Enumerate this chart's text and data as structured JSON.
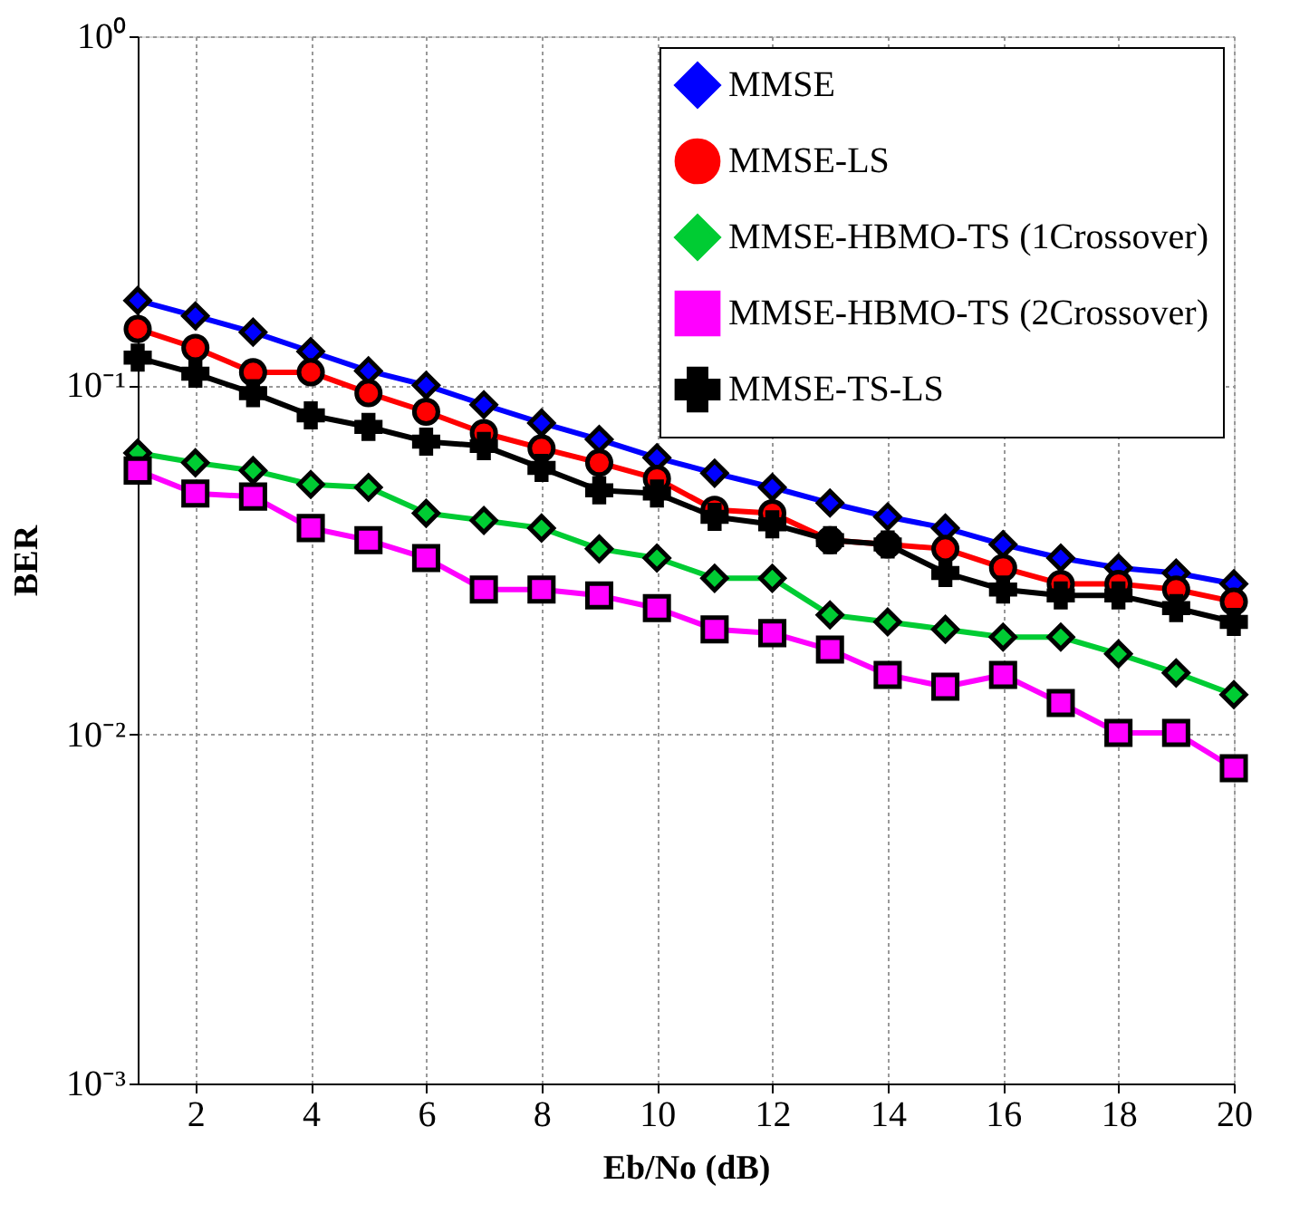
{
  "chart_data": {
    "type": "line",
    "xlabel": "Eb/No (dB)",
    "ylabel": "BER",
    "x": [
      1,
      2,
      3,
      4,
      5,
      6,
      7,
      8,
      9,
      10,
      11,
      12,
      13,
      14,
      15,
      16,
      17,
      18,
      19,
      20
    ],
    "xlim": [
      1,
      20
    ],
    "xticks": [
      2,
      4,
      6,
      8,
      10,
      12,
      14,
      16,
      18,
      20
    ],
    "ylim": [
      0.001,
      1
    ],
    "yticks": [
      {
        "value": 0.001,
        "label": "10⁻³"
      },
      {
        "value": 0.01,
        "label": "10⁻²"
      },
      {
        "value": 0.1,
        "label": "10⁻¹"
      },
      {
        "value": 1,
        "label": "10⁰"
      }
    ],
    "log": "y",
    "grid": true,
    "legend": "top right",
    "series": [
      {
        "name": "MMSE",
        "color": "#0000ff",
        "marker": "diamond",
        "values": [
          0.175,
          0.158,
          0.142,
          0.125,
          0.11,
          0.1,
          0.088,
          0.078,
          0.07,
          0.062,
          0.056,
          0.051,
          0.046,
          0.042,
          0.039,
          0.035,
          0.032,
          0.03,
          0.029,
          0.027
        ]
      },
      {
        "name": "MMSE-LS",
        "color": "#ff0000",
        "marker": "circle",
        "values": [
          0.145,
          0.128,
          0.109,
          0.109,
          0.095,
          0.084,
          0.073,
          0.066,
          0.06,
          0.054,
          0.044,
          0.043,
          0.036,
          0.035,
          0.034,
          0.03,
          0.027,
          0.027,
          0.026,
          0.024
        ]
      },
      {
        "name": "MMSE-HBMO-TS (1Crossover)",
        "color": "#00cc33",
        "marker": "diamond",
        "values": [
          0.064,
          0.06,
          0.057,
          0.052,
          0.051,
          0.043,
          0.041,
          0.039,
          0.034,
          0.032,
          0.028,
          0.028,
          0.022,
          0.021,
          0.02,
          0.019,
          0.019,
          0.017,
          0.015,
          0.013
        ]
      },
      {
        "name": "MMSE-HBMO-TS (2Crossover)",
        "color": "#ff00ff",
        "marker": "square",
        "values": [
          0.057,
          0.049,
          0.048,
          0.039,
          0.036,
          0.032,
          0.026,
          0.026,
          0.025,
          0.023,
          0.02,
          0.0195,
          0.0175,
          0.0148,
          0.0137,
          0.0148,
          0.0123,
          0.0101,
          0.0101,
          0.008
        ]
      },
      {
        "name": "MMSE-TS-LS",
        "color": "#000000",
        "marker": "cross",
        "values": [
          0.12,
          0.108,
          0.095,
          0.082,
          0.076,
          0.069,
          0.067,
          0.058,
          0.05,
          0.049,
          0.042,
          0.04,
          0.036,
          0.035,
          0.029,
          0.026,
          0.025,
          0.025,
          0.023,
          0.021
        ]
      }
    ]
  }
}
